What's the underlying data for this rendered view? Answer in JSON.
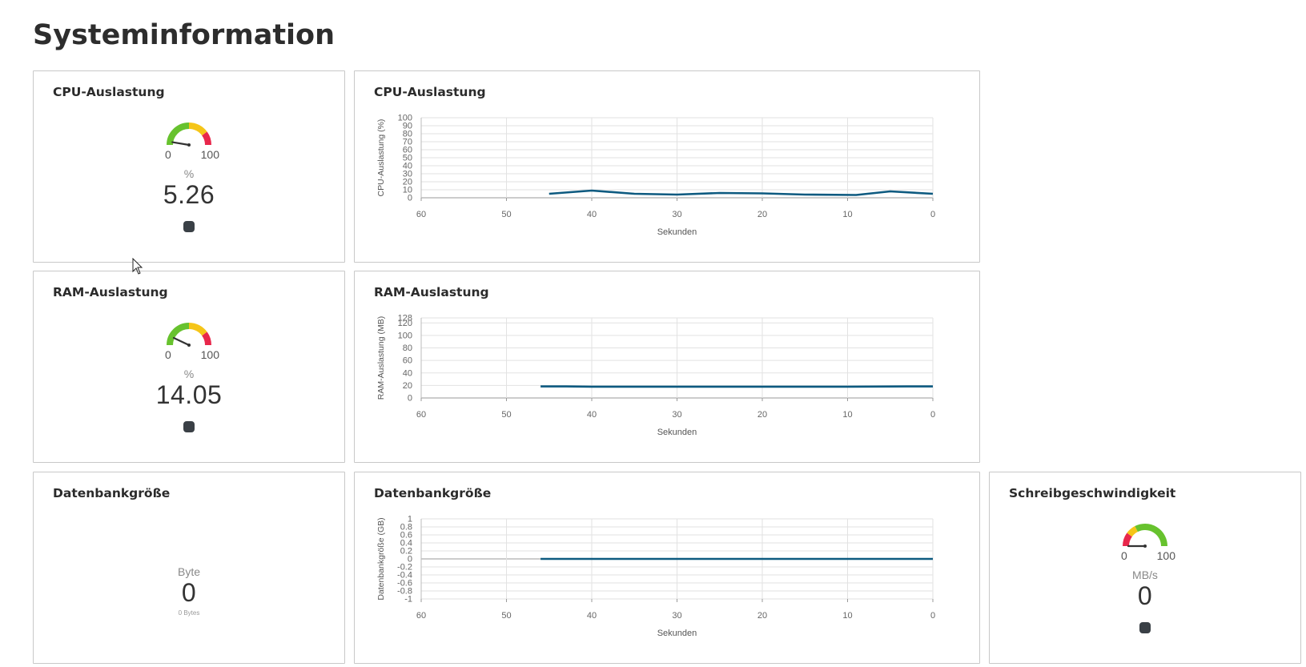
{
  "page": {
    "title": "Systeminformation"
  },
  "cpu_gauge": {
    "title": "CPU-Auslastung",
    "min": "0",
    "max": "100",
    "unit": "%",
    "value": "5.26",
    "level": 0.0526,
    "status": "status-indicator"
  },
  "ram_gauge": {
    "title": "RAM-Auslastung",
    "min": "0",
    "max": "100",
    "unit": "%",
    "value": "14.05",
    "level": 0.1405,
    "status": "status-indicator"
  },
  "db_size": {
    "title": "Datenbankgröße",
    "unit": "Byte",
    "value": "0",
    "sub": "0 Bytes"
  },
  "write_gauge": {
    "title": "Schreibgeschwindigkeit",
    "min": "0",
    "max": "100",
    "unit": "MB/s",
    "value": "0",
    "level": 0,
    "status": "status-indicator"
  },
  "colors": {
    "green": "#67c22e",
    "yellow": "#f5c518",
    "red": "#e8274b",
    "line": "#0d5a80",
    "dot": "#3a4046"
  },
  "chart_data": [
    {
      "type": "line",
      "title": "CPU-Auslastung",
      "xlabel": "Sekunden",
      "ylabel": "CPU-Auslastung (%)",
      "x_reversed": true,
      "xlim": [
        60,
        0
      ],
      "ylim": [
        0,
        100
      ],
      "x_ticks": [
        "60",
        "50",
        "40",
        "30",
        "20",
        "10",
        "0"
      ],
      "y_ticks": [
        "0",
        "10",
        "20",
        "30",
        "40",
        "50",
        "60",
        "70",
        "80",
        "90",
        "100"
      ],
      "grid": true,
      "series": [
        {
          "x": [
            45,
            40,
            35,
            30,
            25,
            20,
            15,
            9,
            5,
            0
          ],
          "y": [
            5,
            9,
            5,
            4,
            6,
            5.5,
            4,
            3.5,
            8,
            5
          ]
        }
      ]
    },
    {
      "type": "line",
      "title": "RAM-Auslastung",
      "xlabel": "Sekunden",
      "ylabel": "RAM-Auslastung (MB)",
      "x_reversed": true,
      "xlim": [
        60,
        0
      ],
      "ylim": [
        0,
        128
      ],
      "x_ticks": [
        "60",
        "50",
        "40",
        "30",
        "20",
        "10",
        "0"
      ],
      "y_ticks": [
        "0",
        "20",
        "40",
        "60",
        "80",
        "100",
        "120",
        "128"
      ],
      "grid": true,
      "series": [
        {
          "x": [
            46,
            43,
            40,
            30,
            20,
            10,
            3,
            0
          ],
          "y": [
            18.5,
            18.5,
            18,
            18,
            18,
            18,
            18.5,
            18.5
          ]
        }
      ]
    },
    {
      "type": "line",
      "title": "Datenbankgröße",
      "xlabel": "Sekunden",
      "ylabel": "Datenbankgröße (GB)",
      "x_reversed": true,
      "xlim": [
        60,
        0
      ],
      "ylim": [
        -1,
        1
      ],
      "x_ticks": [
        "60",
        "50",
        "40",
        "30",
        "20",
        "10",
        "0"
      ],
      "y_ticks": [
        "-1",
        "-0.8",
        "-0.6",
        "-0.4",
        "-0.2",
        "0",
        "0.2",
        "0.4",
        "0.6",
        "0.8",
        "1"
      ],
      "grid": true,
      "series": [
        {
          "x": [
            46,
            40,
            30,
            20,
            10,
            5,
            0
          ],
          "y": [
            0,
            0,
            0,
            0,
            0,
            0,
            0
          ]
        }
      ]
    }
  ]
}
